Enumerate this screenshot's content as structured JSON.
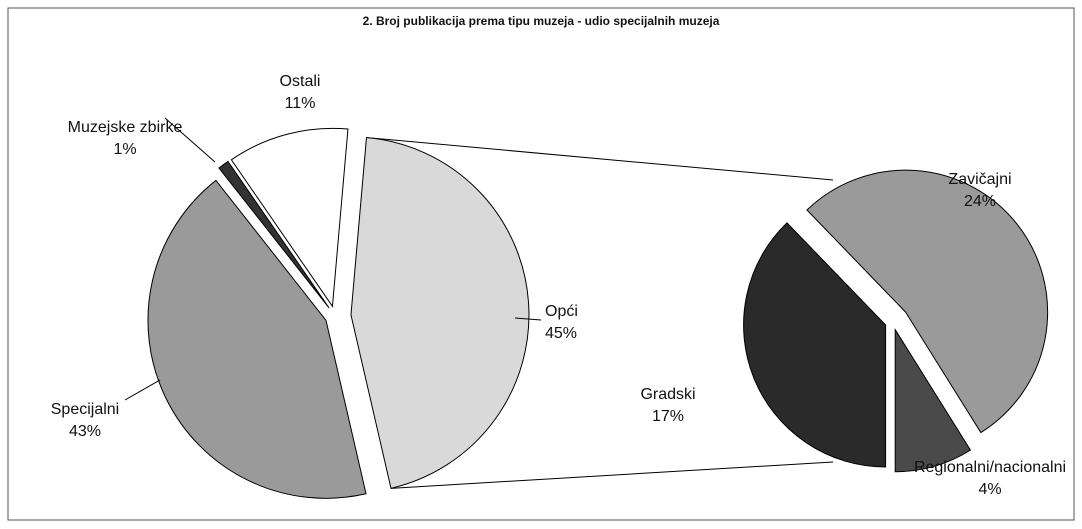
{
  "chart_data": [
    {
      "type": "pie",
      "title": "2. Broj publikacija prema tipu muzeja - udio specijalnih muzeja",
      "categories": [
        "Opći",
        "Specijalni",
        "Muzejske zbirke",
        "Ostali"
      ],
      "values": [
        45,
        43,
        1,
        11
      ],
      "value_labels": [
        "45%",
        "43%",
        "1%",
        "11%"
      ],
      "colors": [
        "#d9d9d9",
        "#9a9a9a",
        "#333333",
        "#ffffff"
      ]
    },
    {
      "type": "pie",
      "categories": [
        "Zavičajni",
        "Regionalni/nacionalni",
        "Gradski"
      ],
      "values": [
        24,
        4,
        17
      ],
      "value_labels": [
        "24%",
        "4%",
        "17%"
      ],
      "colors": [
        "#9a9a9a",
        "#4a4a4a",
        "#2a2a2a"
      ]
    }
  ]
}
